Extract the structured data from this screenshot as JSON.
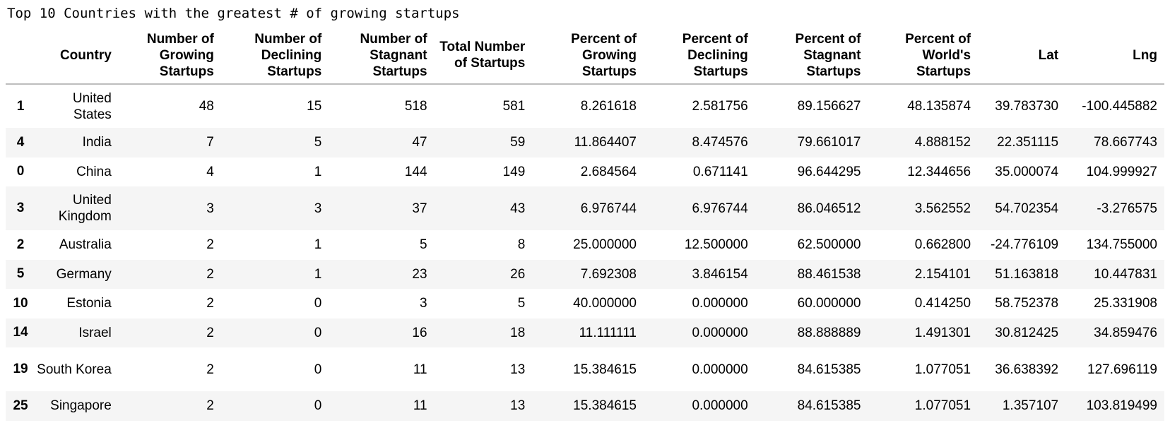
{
  "caption": "Top 10 Countries with the greatest # of growing startups",
  "chart_data": {
    "type": "table",
    "columns": [
      "",
      "Country",
      "Number of Growing Startups",
      "Number of Declining Startups",
      "Number of Stagnant Startups",
      "Total Number of Startups",
      "Percent of Growing Startups",
      "Percent of Declining Startups",
      "Percent of Stagnant Startups",
      "Percent of World's Startups",
      "Lat",
      "Lng"
    ],
    "rows": [
      [
        "1",
        "United States",
        "48",
        "15",
        "518",
        "581",
        "8.261618",
        "2.581756",
        "89.156627",
        "48.135874",
        "39.783730",
        "-100.445882"
      ],
      [
        "4",
        "India",
        "7",
        "5",
        "47",
        "59",
        "11.864407",
        "8.474576",
        "79.661017",
        "4.888152",
        "22.351115",
        "78.667743"
      ],
      [
        "0",
        "China",
        "4",
        "1",
        "144",
        "149",
        "2.684564",
        "0.671141",
        "96.644295",
        "12.344656",
        "35.000074",
        "104.999927"
      ],
      [
        "3",
        "United Kingdom",
        "3",
        "3",
        "37",
        "43",
        "6.976744",
        "6.976744",
        "86.046512",
        "3.562552",
        "54.702354",
        "-3.276575"
      ],
      [
        "2",
        "Australia",
        "2",
        "1",
        "5",
        "8",
        "25.000000",
        "12.500000",
        "62.500000",
        "0.662800",
        "-24.776109",
        "134.755000"
      ],
      [
        "5",
        "Germany",
        "2",
        "1",
        "23",
        "26",
        "7.692308",
        "3.846154",
        "88.461538",
        "2.154101",
        "51.163818",
        "10.447831"
      ],
      [
        "10",
        "Estonia",
        "2",
        "0",
        "3",
        "5",
        "40.000000",
        "0.000000",
        "60.000000",
        "0.414250",
        "58.752378",
        "25.331908"
      ],
      [
        "14",
        "Israel",
        "2",
        "0",
        "16",
        "18",
        "11.111111",
        "0.000000",
        "88.888889",
        "1.491301",
        "30.812425",
        "34.859476"
      ],
      [
        "19",
        "South Korea",
        "2",
        "0",
        "11",
        "13",
        "15.384615",
        "0.000000",
        "84.615385",
        "1.077051",
        "36.638392",
        "127.696119"
      ],
      [
        "25",
        "Singapore",
        "2",
        "0",
        "11",
        "13",
        "15.384615",
        "0.000000",
        "84.615385",
        "1.077051",
        "1.357107",
        "103.819499"
      ]
    ]
  }
}
